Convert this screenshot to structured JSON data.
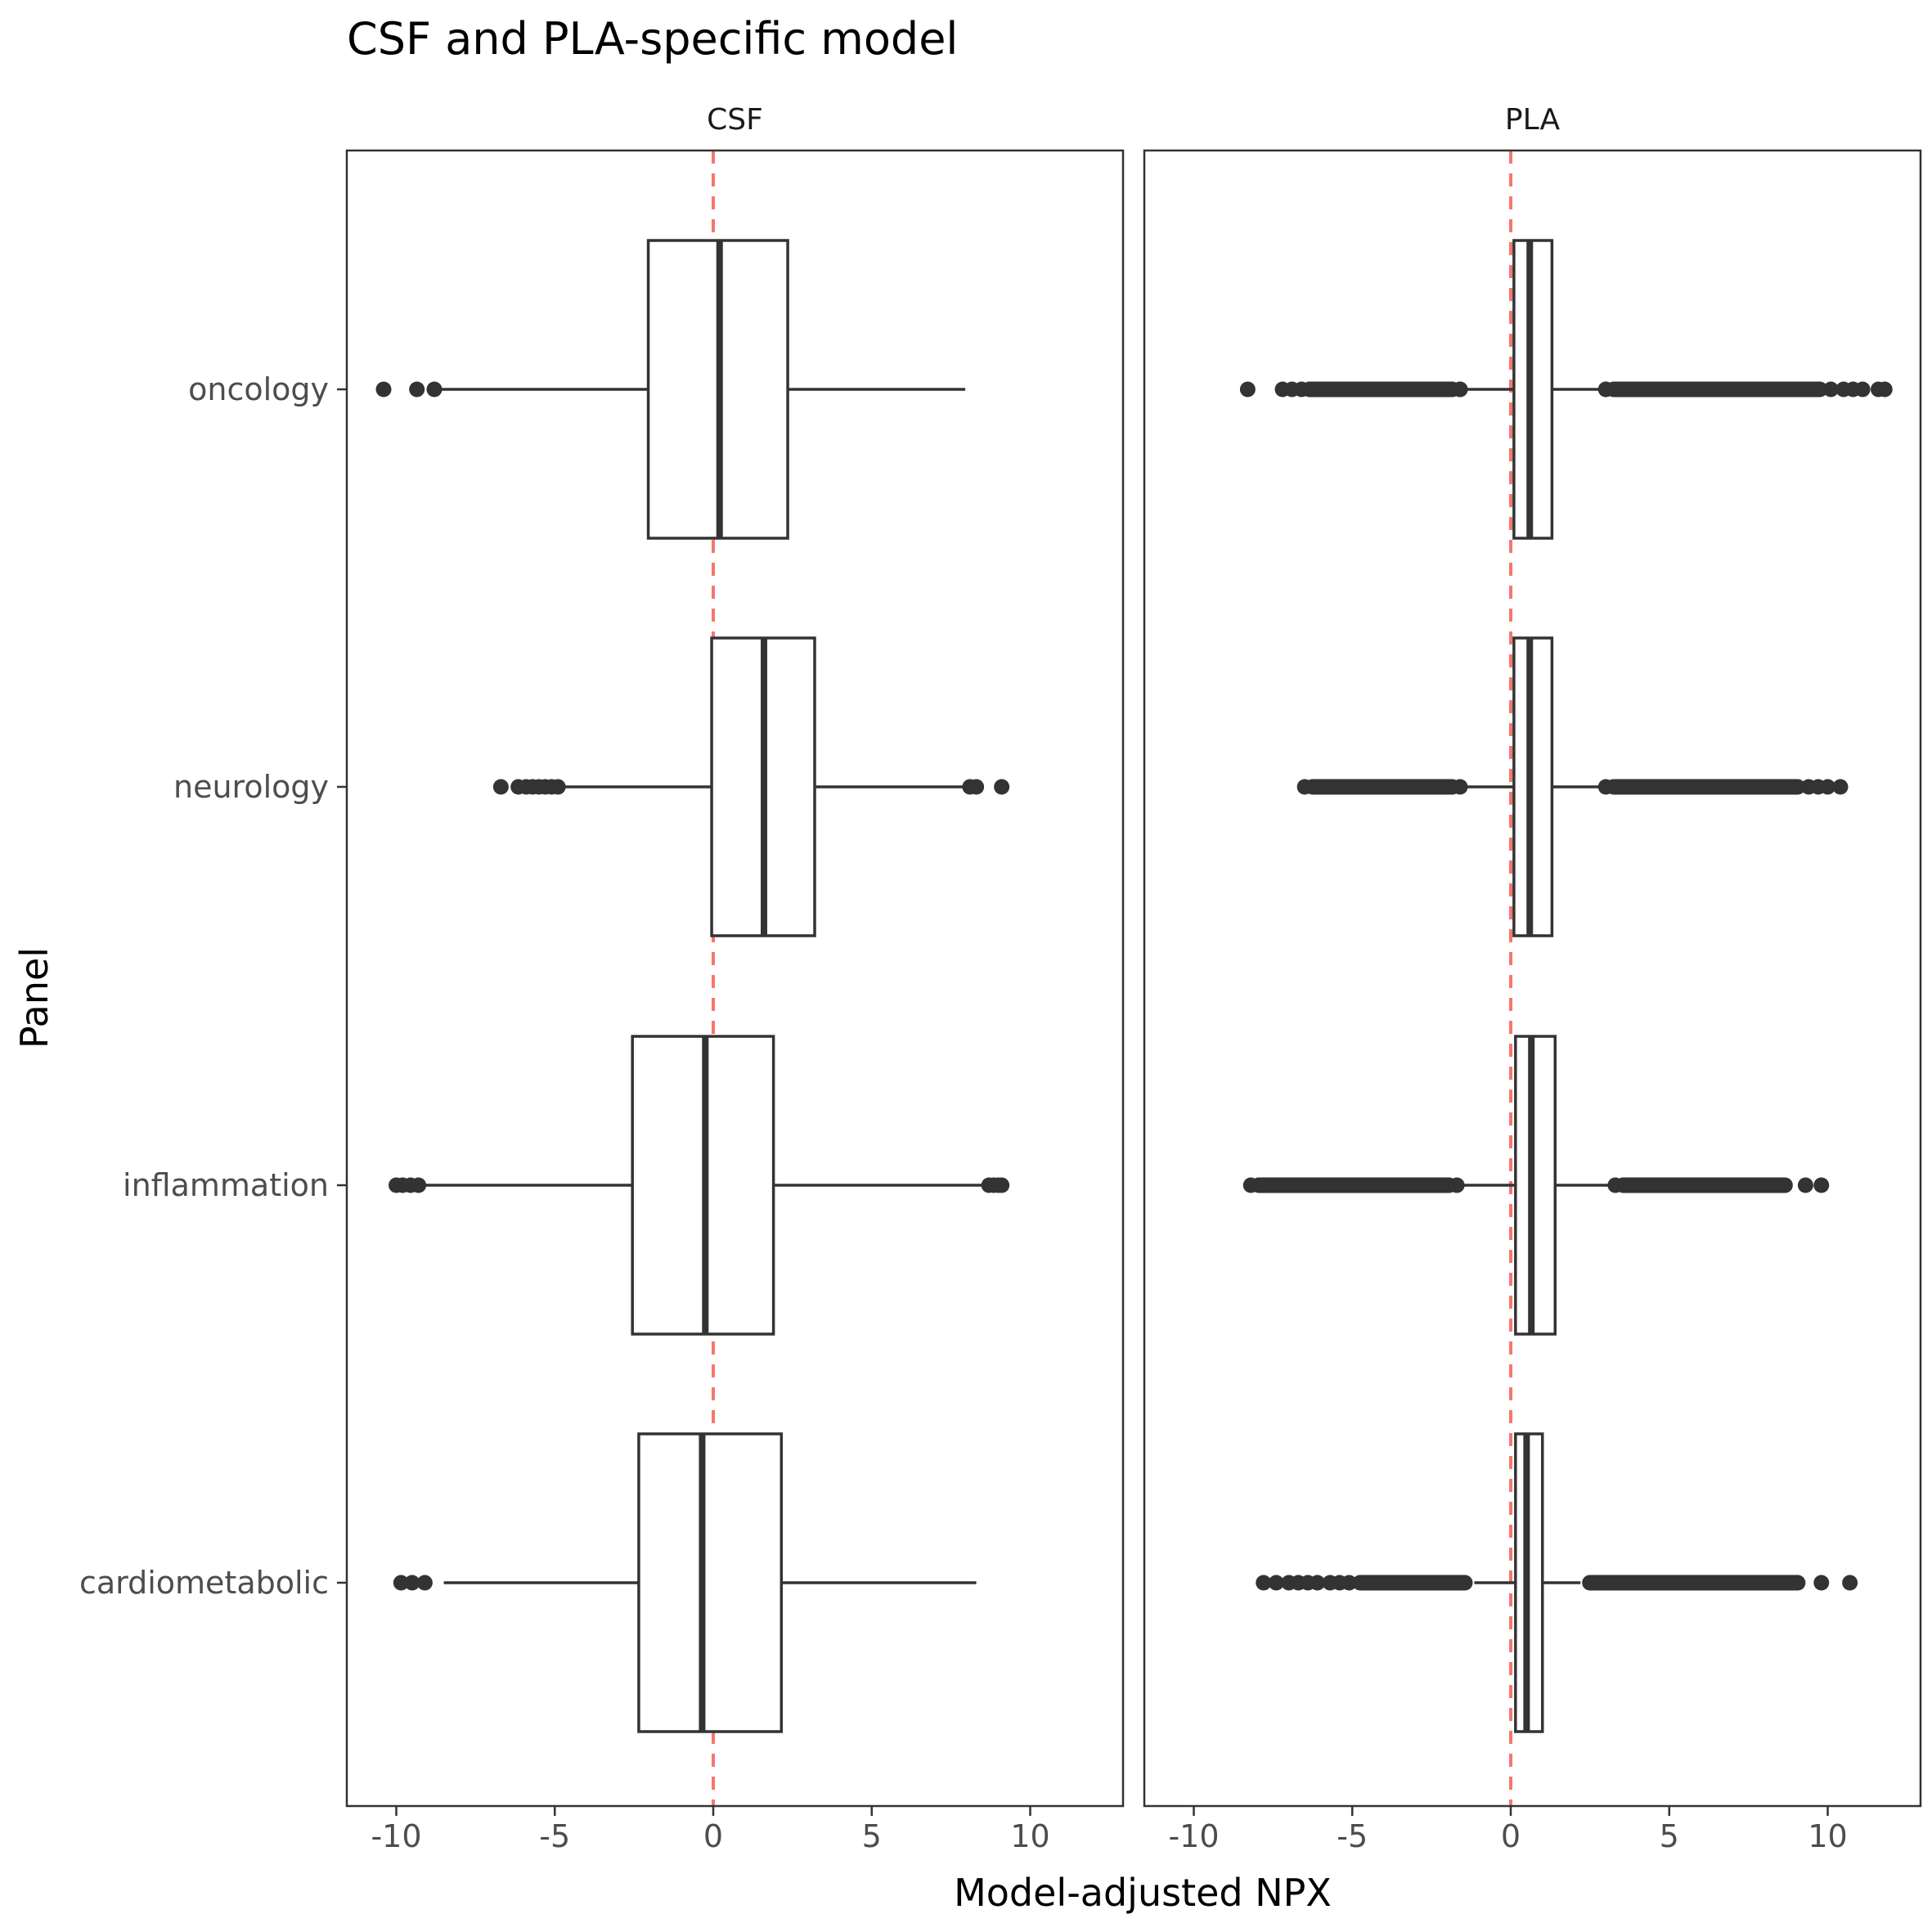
{
  "chart_data": {
    "type": "boxplot",
    "title": "CSF and PLA-specific model",
    "xlabel": "Model-adjusted NPX",
    "ylabel": "Panel",
    "xlim": [
      -11.5,
      13
    ],
    "x_ticks": [
      -10,
      -5,
      0,
      5,
      10
    ],
    "x_tick_labels": [
      "-10",
      "-5",
      "0",
      "5",
      "10"
    ],
    "categories": [
      "oncology",
      "neurology",
      "inflammation",
      "cardiometabolic"
    ],
    "reference_line": {
      "x": 0,
      "color": "#f8766d",
      "style": "dashed"
    },
    "grid": false,
    "box_color": "#333333",
    "facets": [
      {
        "name": "CSF",
        "boxes": [
          {
            "category": "oncology",
            "q1": -2.05,
            "median": 0.2,
            "q3": 2.35,
            "whisker_low": -8.6,
            "whisker_high": 7.95,
            "outliers": [
              -10.4,
              -9.35,
              -8.8
            ]
          },
          {
            "category": "neurology",
            "q1": -0.05,
            "median": 1.6,
            "q3": 3.2,
            "whisker_low": -4.7,
            "whisker_high": 8.0,
            "outliers": [
              -6.7,
              -6.15,
              -5.9,
              -5.7,
              -5.5,
              -5.3,
              -5.1,
              -4.9,
              8.1,
              8.3,
              9.1
            ]
          },
          {
            "category": "inflammation",
            "q1": -2.55,
            "median": -0.25,
            "q3": 1.9,
            "whisker_low": -9.1,
            "whisker_high": 8.6,
            "outliers": [
              -10.0,
              -9.8,
              -9.55,
              -9.3,
              8.7,
              8.85,
              9.0,
              9.1
            ]
          },
          {
            "category": "cardiometabolic",
            "q1": -2.35,
            "median": -0.35,
            "q3": 2.15,
            "whisker_low": -8.5,
            "whisker_high": 8.3,
            "outliers": [
              -9.85,
              -9.5,
              -9.1
            ]
          }
        ]
      },
      {
        "name": "PLA",
        "boxes": [
          {
            "category": "oncology",
            "q1": 0.1,
            "median": 0.6,
            "q3": 1.3,
            "whisker_low": -1.55,
            "whisker_high": 2.95,
            "outliers": [
              -8.3,
              -7.2,
              -6.9,
              -6.6,
              -1.6,
              -1.6,
              3.0,
              3.0,
              10.1,
              10.5,
              10.8,
              11.1,
              11.6,
              11.8
            ],
            "outlier_bands": [
              [
                -6.6,
                -1.6
              ],
              [
                3.0,
                10.0
              ]
            ]
          },
          {
            "category": "neurology",
            "q1": 0.1,
            "median": 0.6,
            "q3": 1.3,
            "whisker_low": -1.55,
            "whisker_high": 2.95,
            "outliers": [
              -6.5,
              -1.6,
              3.0,
              9.4,
              9.7,
              10.0,
              10.4
            ],
            "outlier_bands": [
              [
                -6.5,
                -1.6
              ],
              [
                3.0,
                9.3
              ]
            ]
          },
          {
            "category": "inflammation",
            "q1": 0.15,
            "median": 0.65,
            "q3": 1.4,
            "whisker_low": -1.6,
            "whisker_high": 3.2,
            "outliers": [
              -8.2,
              -1.7,
              3.3,
              9.3,
              9.8
            ],
            "outlier_bands": [
              [
                -8.2,
                -1.7
              ],
              [
                3.3,
                8.9
              ]
            ]
          },
          {
            "category": "cardiometabolic",
            "q1": 0.15,
            "median": 0.5,
            "q3": 1.0,
            "whisker_low": -1.15,
            "whisker_high": 2.2,
            "outliers": [
              -7.8,
              -7.4,
              -7.0,
              -6.7,
              -6.4,
              -6.1,
              -5.7,
              -5.4,
              -5.1,
              9.8,
              10.7
            ],
            "outlier_bands": [
              [
                -5.0,
                -1.2
              ],
              [
                2.25,
                9.3
              ]
            ]
          }
        ]
      }
    ]
  }
}
